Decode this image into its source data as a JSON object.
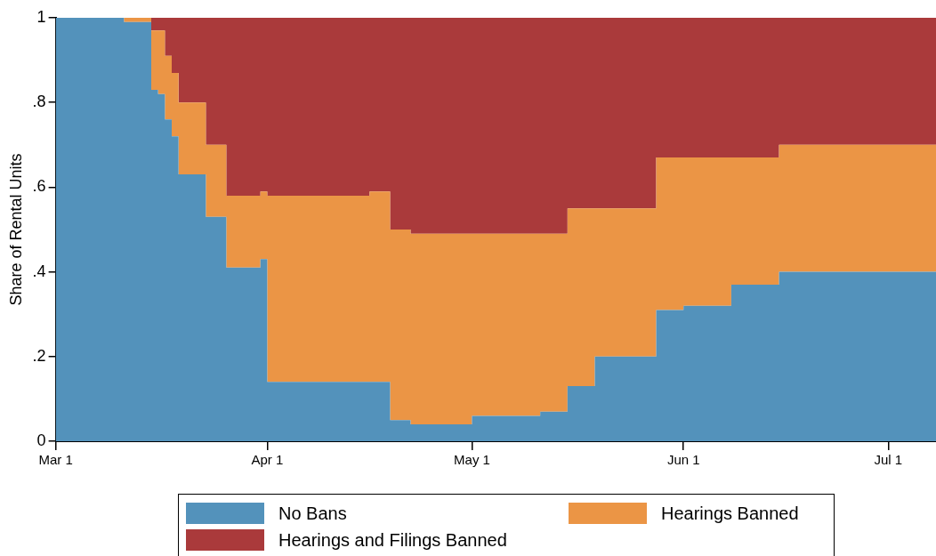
{
  "chart_data": {
    "type": "area",
    "stacked": true,
    "ylabel": "Share of Rental Units",
    "legend": "bottom",
    "grid": false,
    "x": [
      "--03-01",
      "--03-11",
      "--03-11",
      "--03-15",
      "--03-15",
      "--03-16",
      "--03-16",
      "--03-17",
      "--03-17",
      "--03-18",
      "--03-18",
      "--03-19",
      "--03-19",
      "--03-23",
      "--03-23",
      "--03-26",
      "--03-26",
      "--03-31",
      "--03-31",
      "--04-01",
      "--04-01",
      "--04-16",
      "--04-16",
      "--04-19",
      "--04-19",
      "--04-22",
      "--04-22",
      "--05-01",
      "--05-01",
      "--05-11",
      "--05-11",
      "--05-15",
      "--05-15",
      "--05-19",
      "--05-19",
      "--05-28",
      "--05-28",
      "--06-01",
      "--06-01",
      "--06-08",
      "--06-08",
      "--06-15",
      "--06-15",
      "--07-08"
    ],
    "series": [
      {
        "name": "No Bans",
        "color": "#5392bb",
        "values": [
          1,
          1,
          0.99,
          0.99,
          0.83,
          0.83,
          0.82,
          0.82,
          0.76,
          0.76,
          0.72,
          0.72,
          0.63,
          0.63,
          0.53,
          0.53,
          0.41,
          0.41,
          0.43,
          0.43,
          0.14,
          0.14,
          0.14,
          0.14,
          0.05,
          0.05,
          0.04,
          0.04,
          0.06,
          0.06,
          0.07,
          0.07,
          0.13,
          0.13,
          0.2,
          0.2,
          0.31,
          0.31,
          0.32,
          0.32,
          0.37,
          0.37,
          0.4,
          0.4
        ]
      },
      {
        "name": "Hearings Banned",
        "color": "#eb9545",
        "values": [
          0,
          0,
          0.01,
          0.01,
          0.14,
          0.14,
          0.15,
          0.15,
          0.15,
          0.15,
          0.15,
          0.15,
          0.17,
          0.17,
          0.17,
          0.17,
          0.17,
          0.17,
          0.16,
          0.16,
          0.44,
          0.44,
          0.45,
          0.45,
          0.45,
          0.45,
          0.45,
          0.45,
          0.43,
          0.43,
          0.42,
          0.42,
          0.42,
          0.42,
          0.35,
          0.35,
          0.36,
          0.36,
          0.35,
          0.35,
          0.3,
          0.3,
          0.3,
          0.3
        ]
      },
      {
        "name": "Hearings and Filings Banned",
        "color": "#aa3a3b",
        "values": [
          0,
          0,
          0,
          0,
          0.03,
          0.03,
          0.03,
          0.03,
          0.09,
          0.09,
          0.13,
          0.13,
          0.2,
          0.2,
          0.3,
          0.3,
          0.42,
          0.42,
          0.41,
          0.41,
          0.42,
          0.42,
          0.41,
          0.41,
          0.5,
          0.5,
          0.51,
          0.51,
          0.51,
          0.51,
          0.51,
          0.51,
          0.45,
          0.45,
          0.45,
          0.45,
          0.33,
          0.33,
          0.33,
          0.33,
          0.33,
          0.33,
          0.3,
          0.3
        ]
      }
    ],
    "xlim": [
      "--03-01",
      "--07-08"
    ],
    "xticks": [
      {
        "value": "--03-01",
        "label": "Mar 1"
      },
      {
        "value": "--04-01",
        "label": "Apr 1"
      },
      {
        "value": "--05-01",
        "label": "May 1"
      },
      {
        "value": "--06-01",
        "label": "Jun 1"
      },
      {
        "value": "--07-01",
        "label": "Jul 1"
      }
    ],
    "ylim": [
      0,
      1
    ],
    "yticks": [
      0,
      {
        "value": 0.2,
        "label": ".2"
      },
      {
        "value": 0.4,
        "label": ".4"
      },
      {
        "value": 0.6,
        "label": ".6"
      },
      {
        "value": 0.8,
        "label": ".8"
      },
      1
    ]
  }
}
